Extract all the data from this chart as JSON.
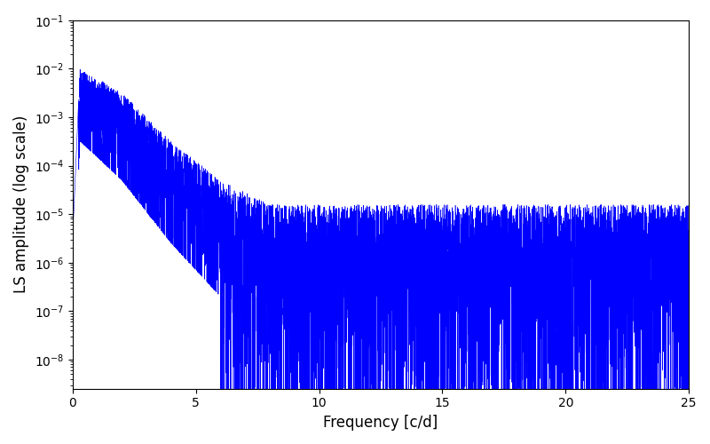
{
  "title": "",
  "xlabel": "Frequency [c/d]",
  "ylabel": "LS amplitude (log scale)",
  "xlim": [
    0,
    25
  ],
  "ylim_log": [
    -8.6,
    -1.0
  ],
  "line_color": "#0000ff",
  "line_width": 0.4,
  "background_color": "#ffffff",
  "figsize": [
    8.0,
    5.0
  ],
  "dpi": 100,
  "seed": 12345,
  "n_points": 8000,
  "freq_max": 25.0
}
